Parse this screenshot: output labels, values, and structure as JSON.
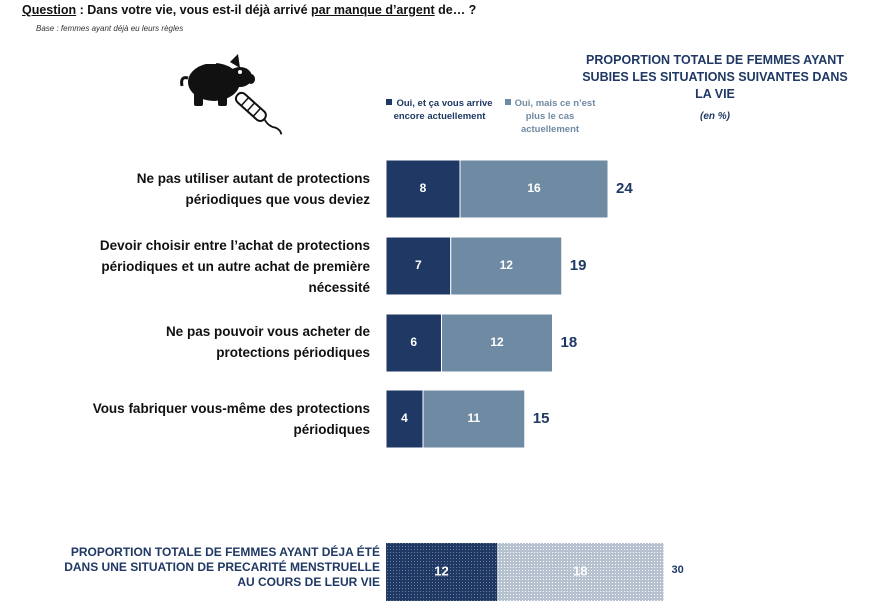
{
  "question": {
    "prefix": "Question",
    "part1": " : Dans votre vie, vous est-il déjà arrivé ",
    "emphasis": "par manque d’argent",
    "part2": " de… ?"
  },
  "base": "Base : femmes ayant déjà eu leurs règles",
  "header": {
    "title": "PROPORTION TOTALE DE FEMMES AYANT SUBIES LES SITUATIONS SUIVANTES DANS LA VIE",
    "unit": "(en %)"
  },
  "legend": {
    "series1": "Oui, et ça vous arrive encore actuellement",
    "series2": "Oui, mais ce n’est plus le cas actuellement"
  },
  "footer": {
    "label": "PROPORTION TOTALE DE FEMMES AYANT DÉJA ÉTÉ DANS UNE SITUATION DE PRECARITÉ MENSTRUELLE AU COURS DE LEUR VIE"
  },
  "icons": [
    "piggy-bank-icon",
    "tampon-icon"
  ],
  "colors": {
    "series1": "#1f3864",
    "series2": "#6f8aa3",
    "total_text": "#1f3864",
    "footer_s1": "#1f3864",
    "footer_s2": "#b5c1cf"
  },
  "chart_data": [
    {
      "type": "bar",
      "orientation": "horizontal",
      "stacked": true,
      "categories": [
        "Ne pas utiliser autant de protections périodiques que vous deviez",
        "Devoir choisir entre l’achat de protections périodiques et un autre achat de première nécessité",
        "Ne pas pouvoir vous acheter de protections périodiques",
        "Vous fabriquer vous-même des protections périodiques"
      ],
      "series": [
        {
          "name": "Oui, et ça vous arrive encore actuellement",
          "values": [
            8,
            7,
            6,
            4
          ]
        },
        {
          "name": "Oui, mais ce n’est plus le cas actuellement",
          "values": [
            16,
            12,
            12,
            11
          ]
        }
      ],
      "totals": [
        24,
        19,
        18,
        15
      ],
      "xlim": [
        0,
        30
      ]
    },
    {
      "type": "bar",
      "orientation": "horizontal",
      "stacked": true,
      "categories": [
        "PROPORTION TOTALE DE FEMMES AYANT DÉJA ÉTÉ DANS UNE SITUATION DE PRECARITÉ MENSTRUELLE AU COURS DE LEUR VIE"
      ],
      "series": [
        {
          "name": "Oui, et ça vous arrive encore actuellement",
          "values": [
            12
          ]
        },
        {
          "name": "Oui, mais ce n’est plus le cas actuellement",
          "values": [
            18
          ]
        }
      ],
      "totals": [
        30
      ],
      "xlim": [
        0,
        30
      ]
    }
  ]
}
